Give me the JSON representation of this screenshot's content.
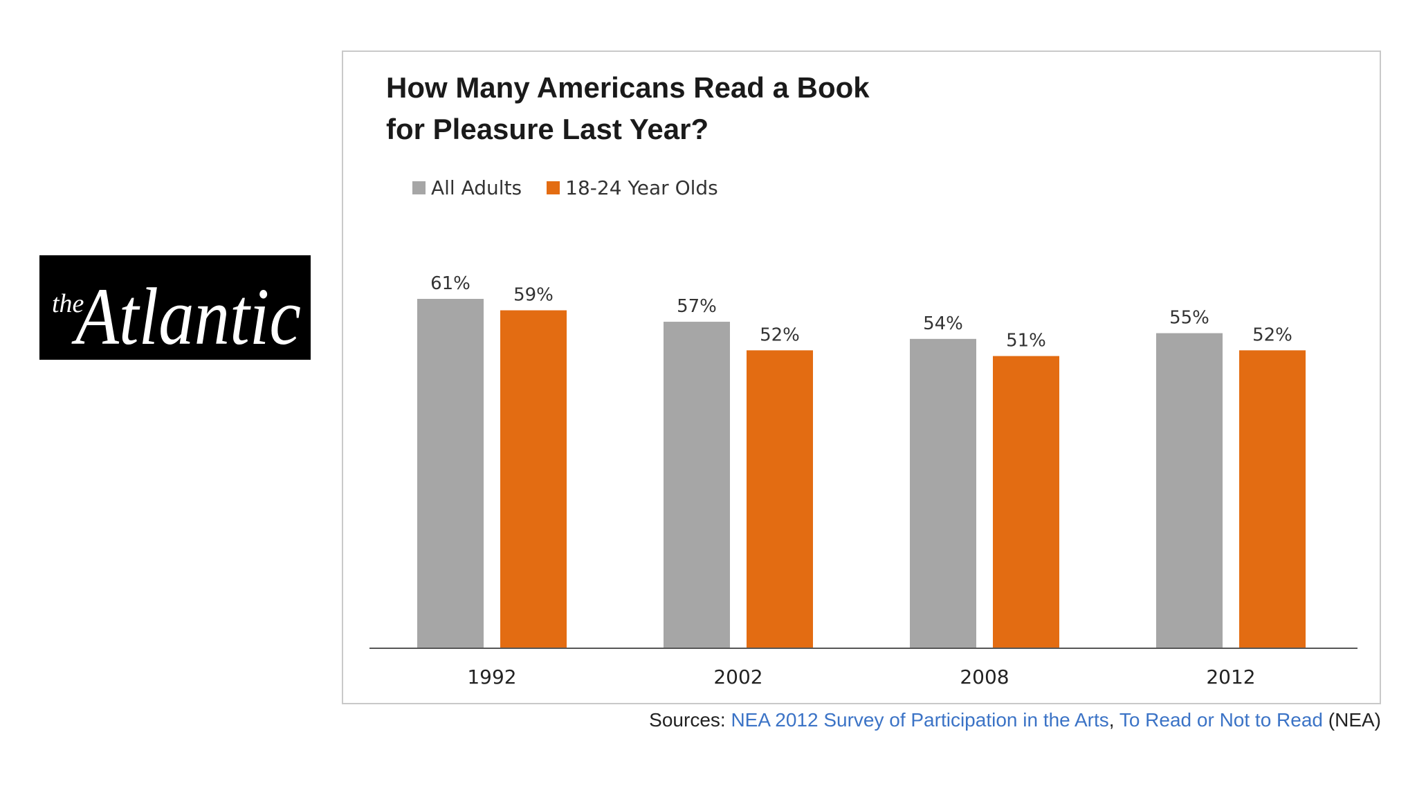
{
  "logo": {
    "prefix": "the",
    "name": "Atlantic"
  },
  "colors": {
    "all_adults": "#a6a6a6",
    "young_adults": "#e36c12",
    "link": "#3b73c6",
    "axis": "#555555"
  },
  "chart_data": {
    "type": "bar",
    "title_lines": [
      "How Many Americans Read a Book",
      "for Pleasure Last Year?"
    ],
    "categories": [
      "1992",
      "2002",
      "2008",
      "2012"
    ],
    "series": [
      {
        "name": "All Adults",
        "values": [
          61,
          57,
          54,
          55
        ],
        "labels": [
          "61%",
          "57%",
          "54%",
          "55%"
        ]
      },
      {
        "name": "18-24 Year Olds",
        "values": [
          59,
          52,
          51,
          52
        ],
        "labels": [
          "59%",
          "52%",
          "51%",
          "52%"
        ]
      }
    ],
    "xlabel": "",
    "ylabel": "",
    "ylim": [
      0,
      61
    ],
    "grid": false,
    "legend_position": "top-left"
  },
  "sources": {
    "prefix": "Sources: ",
    "link1": "NEA 2012 Survey of Participation in the Arts",
    "separator": ", ",
    "link2": "To Read or Not to Read",
    "suffix": " (NEA)"
  }
}
